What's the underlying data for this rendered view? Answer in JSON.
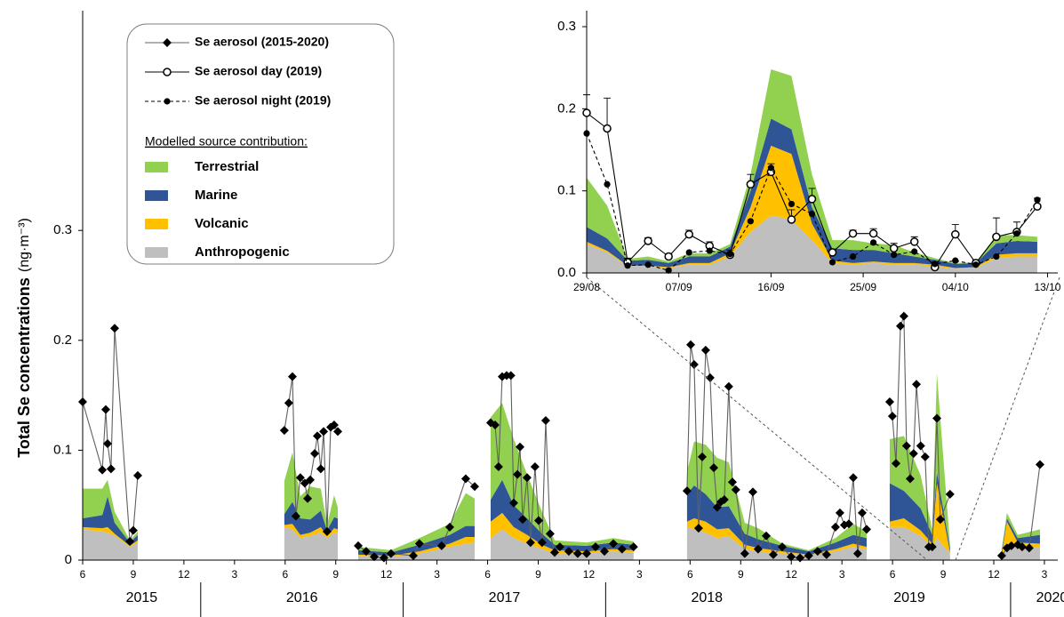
{
  "chart_data": [
    {
      "type": "line",
      "ylabel": "Total Se concentrations",
      "ylabel_unit": "(ng·m⁻³)",
      "ylim": [
        0,
        0.5
      ],
      "yticks": [
        0,
        0.1,
        0.2,
        0.3
      ],
      "xlim": [
        2015.417,
        2020.233
      ],
      "xticks": [
        {
          "value": 2015.417,
          "label": "6"
        },
        {
          "value": 2015.667,
          "label": "9"
        },
        {
          "value": 2015.917,
          "label": "12"
        },
        {
          "value": 2016.167,
          "label": "3"
        },
        {
          "value": 2016.417,
          "label": "6"
        },
        {
          "value": 2016.667,
          "label": "9"
        },
        {
          "value": 2016.917,
          "label": "12"
        },
        {
          "value": 2017.167,
          "label": "3"
        },
        {
          "value": 2017.417,
          "label": "6"
        },
        {
          "value": 2017.667,
          "label": "9"
        },
        {
          "value": 2017.917,
          "label": "12"
        },
        {
          "value": 2018.167,
          "label": "3"
        },
        {
          "value": 2018.417,
          "label": "6"
        },
        {
          "value": 2018.667,
          "label": "9"
        },
        {
          "value": 2018.917,
          "label": "12"
        },
        {
          "value": 2019.167,
          "label": "3"
        },
        {
          "value": 2019.417,
          "label": "6"
        },
        {
          "value": 2019.667,
          "label": "9"
        },
        {
          "value": 2019.917,
          "label": "12"
        },
        {
          "value": 2020.167,
          "label": "3"
        }
      ],
      "xgroups": [
        2015,
        2016,
        2017,
        2018,
        2019,
        2020
      ],
      "series": [
        {
          "name": "Se aerosol (2015-2020)",
          "color": "#000000",
          "line_color": "#606060",
          "marker": "diamond",
          "x": [
            2015.417,
            2015.514,
            2015.531,
            2015.54,
            2015.557,
            2015.575,
            2015.65,
            2015.667,
            2015.689,
            null,
            2016.413,
            2016.435,
            2016.453,
            2016.47,
            2016.492,
            2016.514,
            2016.528,
            2016.541,
            2016.563,
            2016.576,
            2016.593,
            2016.607,
            2016.624,
            2016.642,
            2016.659,
            2016.677,
            null,
            2016.778,
            2016.817,
            2016.857,
            2016.905,
            2016.94,
            2017.05,
            2017.08,
            2017.19,
            2017.23,
            2017.309,
            2017.353,
            null,
            2017.432,
            2017.454,
            2017.471,
            2017.489,
            2017.511,
            2017.532,
            2017.546,
            2017.564,
            2017.577,
            2017.59,
            2017.612,
            2017.629,
            2017.651,
            2017.669,
            2017.686,
            2017.704,
            2017.726,
            2017.748,
            2017.774,
            2017.818,
            2017.862,
            2017.906,
            2017.95,
            2017.994,
            2018.038,
            2018.081,
            2018.138,
            null,
            2018.402,
            2018.42,
            2018.437,
            2018.459,
            2018.477,
            2018.494,
            2018.516,
            2018.534,
            2018.551,
            2018.569,
            2018.586,
            2018.608,
            2018.626,
            2018.643,
            2018.687,
            2018.727,
            2018.753,
            2018.793,
            2018.828,
            2018.872,
            2018.916,
            2018.96,
            2019.003,
            2019.047,
            2019.091,
            2019.135,
            2019.157,
            2019.179,
            2019.201,
            2019.223,
            2019.245,
            2019.267,
            2019.289,
            null,
            2019.403,
            2019.416,
            2019.434,
            2019.456,
            2019.473,
            2019.486,
            2019.504,
            2019.521,
            2019.535,
            2019.556,
            2019.578,
            2019.596,
            2019.613,
            2019.636,
            2019.653,
            2019.701,
            null,
            2019.956,
            2019.982,
            2020.004,
            2020.035,
            2020.057,
            2020.092,
            2020.145
          ],
          "values": [
            0.144,
            0.082,
            0.137,
            0.106,
            0.083,
            0.211,
            0.017,
            0.027,
            0.077,
            null,
            0.118,
            0.143,
            0.167,
            0.04,
            0.075,
            0.07,
            0.056,
            0.073,
            0.097,
            0.113,
            0.083,
            0.117,
            0.026,
            0.121,
            0.123,
            0.117,
            null,
            0.013,
            0.008,
            0.003,
            0.002,
            0.006,
            0.004,
            0.015,
            0.013,
            0.03,
            0.074,
            0.067,
            null,
            0.125,
            0.123,
            0.085,
            0.167,
            0.168,
            0.168,
            0.052,
            0.078,
            0.103,
            0.037,
            0.075,
            0.016,
            0.085,
            0.036,
            0.016,
            0.127,
            0.024,
            0.007,
            0.012,
            0.008,
            0.006,
            0.006,
            0.012,
            0.008,
            0.015,
            0.01,
            0.012,
            null,
            0.063,
            0.196,
            0.178,
            0.029,
            0.094,
            0.191,
            0.166,
            0.084,
            0.048,
            0.053,
            0.055,
            0.158,
            0.071,
            0.064,
            0.006,
            0.062,
            0.01,
            0.022,
            0.005,
            0.012,
            0.003,
            0.002,
            0.004,
            0.008,
            0.005,
            0.03,
            0.043,
            0.032,
            0.033,
            0.075,
            0.006,
            0.043,
            0.028,
            null,
            0.144,
            0.131,
            0.088,
            0.213,
            0.222,
            0.104,
            0.074,
            0.097,
            0.16,
            0.104,
            0.094,
            0.012,
            0.012,
            0.129,
            0.037,
            0.06,
            null,
            0.004,
            0.011,
            0.013,
            0.014,
            0.012,
            0.011,
            0.087
          ]
        }
      ],
      "areas": {
        "title": "Modelled source contribution:",
        "x": [
          2015.417,
          2015.514,
          2015.54,
          2015.575,
          2015.65,
          2015.689,
          null,
          2016.413,
          2016.453,
          2016.492,
          2016.541,
          2016.593,
          2016.624,
          2016.659,
          2016.677,
          null,
          2016.778,
          2016.94,
          2017.08,
          2017.23,
          2017.309,
          2017.353,
          null,
          2017.432,
          2017.489,
          2017.546,
          2017.612,
          2017.686,
          2017.748,
          2017.906,
          2018.038,
          2018.138,
          null,
          2018.402,
          2018.437,
          2018.494,
          2018.551,
          2018.608,
          2018.687,
          2018.753,
          2018.872,
          2019.003,
          2019.135,
          2019.223,
          2019.289,
          null,
          2019.403,
          2019.473,
          2019.556,
          2019.613,
          2019.636,
          2019.701,
          null,
          2019.956,
          2019.982,
          2020.035,
          2020.145
        ],
        "series": [
          {
            "name": "Anthropogenic",
            "color": "#bfbfbf",
            "values": [
              0.028,
              0.026,
              0.025,
              0.022,
              0.012,
              0.016,
              null,
              0.03,
              0.028,
              0.02,
              0.022,
              0.025,
              0.02,
              0.025,
              0.025,
              null,
              0.004,
              0.003,
              0.006,
              0.012,
              0.015,
              0.016,
              null,
              0.02,
              0.028,
              0.02,
              0.015,
              0.01,
              0.006,
              0.006,
              0.008,
              0.007,
              null,
              0.03,
              0.028,
              0.025,
              0.02,
              0.022,
              0.01,
              0.008,
              0.006,
              0.004,
              0.008,
              0.012,
              0.01,
              null,
              0.03,
              0.03,
              0.022,
              0.012,
              0.02,
              0.006,
              null,
              0.004,
              0.015,
              0.012,
              0.012
            ]
          },
          {
            "name": "Volcanic",
            "color": "#ffc000",
            "values": [
              0.002,
              0.003,
              0.005,
              0.002,
              0.001,
              0.002,
              null,
              0.002,
              0.005,
              0.003,
              0.003,
              0.005,
              0.002,
              0.004,
              0.003,
              null,
              0.001,
              0.001,
              0.002,
              0.003,
              0.006,
              0.005,
              null,
              0.015,
              0.015,
              0.01,
              0.008,
              0.004,
              0.003,
              0.002,
              0.002,
              0.002,
              null,
              0.005,
              0.01,
              0.01,
              0.008,
              0.007,
              0.004,
              0.003,
              0.002,
              0.001,
              0.002,
              0.003,
              0.002,
              null,
              0.005,
              0.008,
              0.005,
              0.003,
              0.05,
              0.001,
              null,
              0.001,
              0.02,
              0.004,
              0.003
            ]
          },
          {
            "name": "Marine",
            "color": "#2f5597",
            "values": [
              0.008,
              0.012,
              0.028,
              0.01,
              0.003,
              0.005,
              null,
              0.01,
              0.02,
              0.015,
              0.012,
              0.015,
              0.005,
              0.01,
              0.01,
              null,
              0.004,
              0.003,
              0.006,
              0.008,
              0.01,
              0.01,
              null,
              0.02,
              0.03,
              0.02,
              0.015,
              0.01,
              0.005,
              0.005,
              0.006,
              0.005,
              null,
              0.025,
              0.03,
              0.025,
              0.02,
              0.02,
              0.01,
              0.008,
              0.005,
              0.003,
              0.006,
              0.008,
              0.008,
              null,
              0.035,
              0.025,
              0.02,
              0.008,
              0.01,
              0.004,
              null,
              0.003,
              0.003,
              0.004,
              0.008
            ]
          },
          {
            "name": "Terrestrial",
            "color": "#92d050",
            "values": [
              0.027,
              0.024,
              0.015,
              0.01,
              0.002,
              0.003,
              null,
              0.03,
              0.045,
              0.02,
              0.03,
              0.02,
              0.005,
              0.02,
              0.01,
              null,
              0.003,
              0.002,
              0.006,
              0.01,
              0.03,
              0.025,
              null,
              0.075,
              0.07,
              0.06,
              0.04,
              0.02,
              0.004,
              0.003,
              0.004,
              0.003,
              null,
              0.02,
              0.04,
              0.045,
              0.045,
              0.04,
              0.01,
              0.01,
              0.002,
              0.001,
              0.004,
              0.01,
              0.006,
              null,
              0.04,
              0.05,
              0.03,
              0.005,
              0.09,
              0.002,
              null,
              0.002,
              0.005,
              0.003,
              0.005
            ]
          }
        ]
      }
    },
    {
      "type": "line",
      "ylim": [
        0,
        0.3
      ],
      "yticks": [
        {
          "value": 0,
          "label": "0.0"
        },
        0.1,
        0.2,
        0.3
      ],
      "xlim": [
        "29/08",
        "14/10"
      ],
      "xticks": [
        "29/08",
        "07/09",
        "16/09",
        "25/09",
        "04/10",
        "13/10"
      ],
      "x": [
        "29/08",
        "31/08",
        "02/09",
        "04/09",
        "06/09",
        "08/09",
        "10/09",
        "12/09",
        "14/09",
        "16/09",
        "18/09",
        "20/09",
        "22/09",
        "24/09",
        "26/09",
        "28/09",
        "30/09",
        "02/10",
        "04/10",
        "06/10",
        "08/10",
        "10/10",
        "12/10"
      ],
      "series": [
        {
          "name": "Se aerosol day (2019)",
          "color": "#000000",
          "line_color": "#000000",
          "marker": "open-circle",
          "values": [
            0.195,
            0.176,
            0.013,
            0.039,
            0.02,
            0.047,
            0.033,
            0.022,
            0.108,
            0.123,
            0.065,
            0.09,
            0.025,
            0.048,
            0.048,
            0.03,
            0.038,
            0.007,
            0.047,
            0.012,
            0.044,
            0.05,
            0.081
          ],
          "errors": [
            0.022,
            0.037,
            0.005,
            0.004,
            0.003,
            0.005,
            0.005,
            0.006,
            0.012,
            0.01,
            0.012,
            0.013,
            0.004,
            0.004,
            0.006,
            0.006,
            0.006,
            0.004,
            0.012,
            0.004,
            0.023,
            0.012,
            0.01
          ]
        },
        {
          "name": "Se aerosol night (2019)",
          "color": "#000000",
          "line_color": "#000000",
          "marker": "filled-circle",
          "dashed": true,
          "values": [
            0.17,
            0.108,
            0.009,
            0.01,
            0.003,
            0.025,
            0.027,
            0.023,
            0.063,
            0.128,
            0.084,
            0.072,
            0.013,
            0.02,
            0.037,
            0.022,
            0.026,
            0.011,
            0.015,
            0.01,
            0.02,
            0.048,
            0.089
          ]
        }
      ],
      "areas": {
        "series": [
          {
            "color": "#bfbfbf",
            "values": [
              0.035,
              0.025,
              0.008,
              0.008,
              0.006,
              0.01,
              0.01,
              0.02,
              0.05,
              0.07,
              0.065,
              0.04,
              0.012,
              0.01,
              0.012,
              0.01,
              0.01,
              0.008,
              0.005,
              0.006,
              0.018,
              0.02,
              0.02
            ]
          },
          {
            "color": "#ffc000",
            "values": [
              0.003,
              0.002,
              0.001,
              0.001,
              0.001,
              0.002,
              0.002,
              0.004,
              0.03,
              0.085,
              0.08,
              0.02,
              0.003,
              0.002,
              0.002,
              0.002,
              0.002,
              0.002,
              0.001,
              0.001,
              0.004,
              0.004,
              0.004
            ]
          },
          {
            "color": "#2f5597",
            "values": [
              0.018,
              0.015,
              0.006,
              0.007,
              0.005,
              0.008,
              0.008,
              0.008,
              0.02,
              0.033,
              0.03,
              0.02,
              0.015,
              0.016,
              0.014,
              0.012,
              0.008,
              0.006,
              0.005,
              0.005,
              0.014,
              0.015,
              0.014
            ]
          },
          {
            "color": "#92d050",
            "values": [
              0.06,
              0.04,
              0.002,
              0.004,
              0.002,
              0.004,
              0.004,
              0.003,
              0.02,
              0.06,
              0.065,
              0.04,
              0.01,
              0.012,
              0.008,
              0.01,
              0.005,
              0.002,
              0.001,
              0.001,
              0.01,
              0.007,
              0.006
            ]
          }
        ]
      }
    }
  ]
}
